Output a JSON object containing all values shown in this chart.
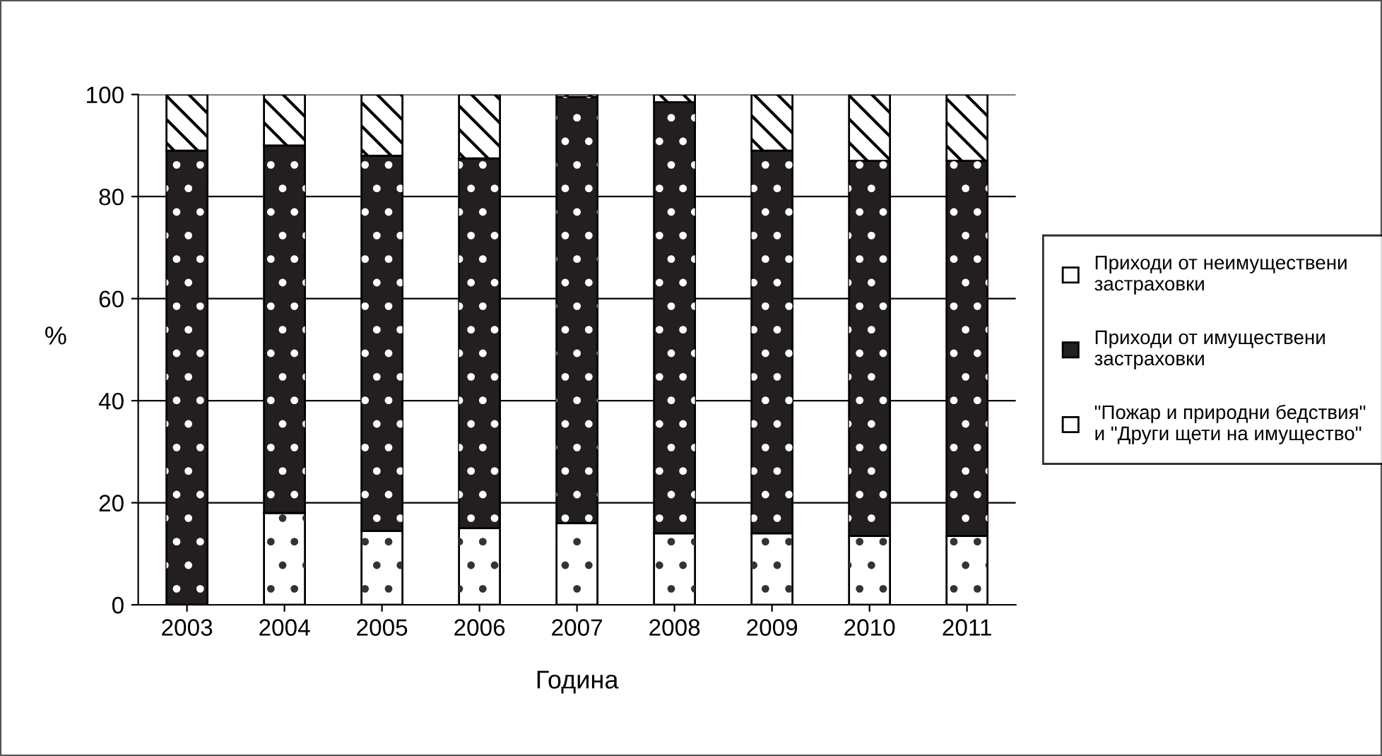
{
  "chart_data": {
    "type": "bar",
    "stacked": true,
    "xlabel": "Година",
    "ylabel": "%",
    "categories": [
      "2003",
      "2004",
      "2005",
      "2006",
      "2007",
      "2008",
      "2009",
      "2010",
      "2011"
    ],
    "series": [
      {
        "name": "\"Пожар и природни бедствия\"\nи \"Други щети на имущество\"",
        "color": "#ffffff",
        "values": [
          0,
          18,
          14.5,
          15,
          16,
          14,
          14,
          13.5,
          13.5
        ]
      },
      {
        "name": "Приходи от имуществени\nзастраховки",
        "color": "#231f20",
        "values": [
          89,
          72,
          73.5,
          72.5,
          83.5,
          84.5,
          75,
          73.5,
          73.5
        ]
      },
      {
        "name": "Приходи от неимуществени\nзастраховки",
        "color": "#ffffff",
        "values": [
          11,
          10,
          12,
          12.5,
          0.5,
          1.5,
          11,
          13,
          13
        ]
      }
    ],
    "ylim": [
      0,
      100
    ],
    "yticks": [
      0,
      20,
      40,
      60,
      80,
      100
    ],
    "grid": "y",
    "legend": "right"
  }
}
